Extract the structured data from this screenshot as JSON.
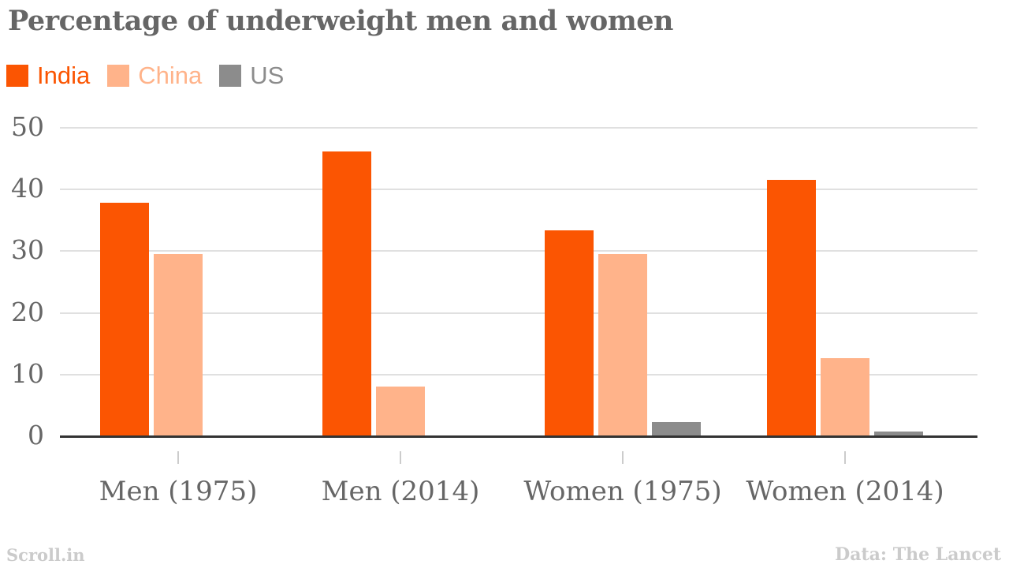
{
  "title": "Percentage of underweight men and women",
  "legend": [
    {
      "label": "India",
      "color": "#fb5502"
    },
    {
      "label": "China",
      "color": "#ffb38a"
    },
    {
      "label": "US",
      "color": "#8c8c8c"
    }
  ],
  "footer": {
    "attribution": "Scroll.in",
    "source": "Data: The Lancet"
  },
  "chart_data": {
    "type": "bar",
    "title": "Percentage of underweight men and women",
    "categories": [
      "Men (1975)",
      "Men (2014)",
      "Women (1975)",
      "Women (2014)"
    ],
    "series": [
      {
        "name": "India",
        "color": "#fb5502",
        "values": [
          37.9,
          46.2,
          33.4,
          41.6
        ]
      },
      {
        "name": "China",
        "color": "#ffb38a",
        "values": [
          29.6,
          8.1,
          29.6,
          12.6
        ]
      },
      {
        "name": "US",
        "color": "#8c8c8c",
        "values": [
          0,
          0,
          2.3,
          0.8
        ]
      }
    ],
    "xlabel": "",
    "ylabel": "",
    "ylim": [
      0,
      50
    ],
    "yticks": [
      0,
      10,
      20,
      30,
      40,
      50
    ],
    "grid": true,
    "legend_position": "top-left",
    "axis_color": "#333333",
    "gridline_color": "#e0e0e0",
    "text_color": "#666666"
  }
}
